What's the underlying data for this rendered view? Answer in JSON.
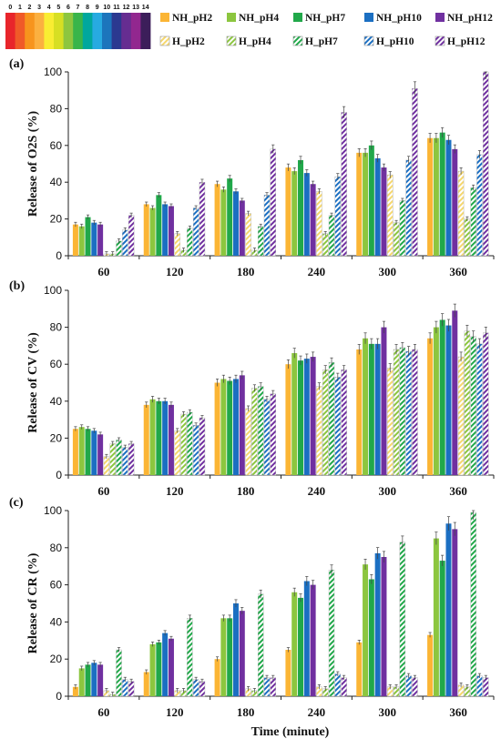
{
  "ph_scale": {
    "labels": [
      "0",
      "1",
      "2",
      "3",
      "4",
      "5",
      "6",
      "7",
      "8",
      "9",
      "10",
      "11",
      "12",
      "13",
      "14"
    ],
    "colors": [
      "#e8252b",
      "#f05a28",
      "#f7941d",
      "#fbb040",
      "#f9ed32",
      "#d7df23",
      "#8dc63f",
      "#39b54a",
      "#00a79d",
      "#27aae1",
      "#1c75bc",
      "#2b3990",
      "#662d91",
      "#92278f",
      "#3c1e5a"
    ]
  },
  "legend": {
    "items": [
      {
        "label": "NH_pH2",
        "color": "#fbb535",
        "hatch": false
      },
      {
        "label": "NH_pH4",
        "color": "#8cc63f",
        "hatch": false
      },
      {
        "label": "NH_pH7",
        "color": "#21a84a",
        "hatch": false
      },
      {
        "label": "NH_pH10",
        "color": "#1b6fc2",
        "hatch": false
      },
      {
        "label": "NH_pH12",
        "color": "#7030a0",
        "hatch": false
      },
      {
        "label": "H_pH2",
        "color": "#f5d76e",
        "hatch": true
      },
      {
        "label": "H_pH4",
        "color": "#8cc63f",
        "hatch": true
      },
      {
        "label": "H_pH7",
        "color": "#21a84a",
        "hatch": true
      },
      {
        "label": "H_pH10",
        "color": "#1b6fc2",
        "hatch": true
      },
      {
        "label": "H_pH12",
        "color": "#7030a0",
        "hatch": true
      }
    ]
  },
  "chart_data": [
    {
      "type": "bar",
      "panel": "(a)",
      "ylabel": "Release of  O2S (%)",
      "xlabel": "",
      "ylim": [
        0,
        100
      ],
      "yticks": [
        0,
        20,
        40,
        60,
        80,
        100
      ],
      "categories": [
        "60",
        "120",
        "180",
        "240",
        "300",
        "360"
      ],
      "series": [
        {
          "name": "NH_pH2",
          "values": [
            17,
            28,
            39,
            48,
            56,
            64
          ]
        },
        {
          "name": "NH_pH4",
          "values": [
            16,
            26,
            36,
            46,
            56,
            64
          ]
        },
        {
          "name": "NH_pH7",
          "values": [
            21,
            33,
            42,
            52,
            60,
            67
          ]
        },
        {
          "name": "NH_pH10",
          "values": [
            18,
            28,
            35,
            45,
            53,
            63
          ]
        },
        {
          "name": "NH_pH12",
          "values": [
            17,
            27,
            30,
            39,
            48,
            58
          ]
        },
        {
          "name": "H_pH2",
          "values": [
            1,
            12,
            23,
            35,
            44,
            46
          ]
        },
        {
          "name": "H_pH4",
          "values": [
            1,
            3,
            3,
            12,
            18,
            20
          ]
        },
        {
          "name": "H_pH7",
          "values": [
            8,
            15,
            16,
            22,
            30,
            37
          ]
        },
        {
          "name": "H_pH10",
          "values": [
            14,
            26,
            33,
            43,
            52,
            55
          ]
        },
        {
          "name": "H_pH12",
          "values": [
            22,
            40,
            58,
            78,
            91,
            100
          ]
        }
      ]
    },
    {
      "type": "bar",
      "panel": "(b)",
      "ylabel": "Release of  CV (%)",
      "xlabel": "",
      "ylim": [
        0,
        100
      ],
      "yticks": [
        0,
        20,
        40,
        60,
        80,
        100
      ],
      "categories": [
        "60",
        "120",
        "180",
        "240",
        "300",
        "360"
      ],
      "series": [
        {
          "name": "NH_pH2",
          "values": [
            25,
            38,
            50,
            60,
            68,
            74
          ]
        },
        {
          "name": "NH_pH4",
          "values": [
            26,
            41,
            52,
            66,
            74,
            80
          ]
        },
        {
          "name": "NH_pH7",
          "values": [
            25,
            40,
            51,
            62,
            71,
            84
          ]
        },
        {
          "name": "NH_pH10",
          "values": [
            24,
            40,
            52,
            63,
            71,
            81
          ]
        },
        {
          "name": "NH_pH12",
          "values": [
            22,
            38,
            54,
            64,
            80,
            89
          ]
        },
        {
          "name": "H_pH2",
          "values": [
            10,
            24,
            36,
            48,
            58,
            64
          ]
        },
        {
          "name": "H_pH4",
          "values": [
            17,
            33,
            47,
            57,
            68,
            78
          ]
        },
        {
          "name": "H_pH7",
          "values": [
            19,
            34,
            48,
            61,
            69,
            75
          ]
        },
        {
          "name": "H_pH10",
          "values": [
            15,
            27,
            41,
            53,
            67,
            71
          ]
        },
        {
          "name": "H_pH12",
          "values": [
            17,
            31,
            44,
            57,
            68,
            77
          ]
        }
      ]
    },
    {
      "type": "bar",
      "panel": "(c)",
      "ylabel": "Release of  CR (%)",
      "xlabel": "Time (minute)",
      "ylim": [
        0,
        100
      ],
      "yticks": [
        0,
        20,
        40,
        60,
        80,
        100
      ],
      "categories": [
        "60",
        "120",
        "180",
        "240",
        "300",
        "360"
      ],
      "series": [
        {
          "name": "NH_pH2",
          "values": [
            5,
            13,
            20,
            25,
            29,
            33
          ]
        },
        {
          "name": "NH_pH4",
          "values": [
            15,
            28,
            42,
            56,
            71,
            85
          ]
        },
        {
          "name": "NH_pH7",
          "values": [
            17,
            29,
            42,
            53,
            63,
            73
          ]
        },
        {
          "name": "NH_pH10",
          "values": [
            18,
            34,
            50,
            62,
            77,
            93
          ]
        },
        {
          "name": "NH_pH12",
          "values": [
            17,
            31,
            46,
            60,
            75,
            90
          ]
        },
        {
          "name": "H_pH2",
          "values": [
            3,
            3,
            4,
            5,
            5,
            6
          ]
        },
        {
          "name": "H_pH4",
          "values": [
            1,
            3,
            3,
            4,
            5,
            5
          ]
        },
        {
          "name": "H_pH7",
          "values": [
            25,
            42,
            55,
            68,
            83,
            99
          ]
        },
        {
          "name": "H_pH10",
          "values": [
            9,
            9,
            10,
            12,
            11,
            11
          ]
        },
        {
          "name": "H_pH12",
          "values": [
            8,
            8,
            10,
            10,
            10,
            10
          ]
        }
      ]
    }
  ]
}
